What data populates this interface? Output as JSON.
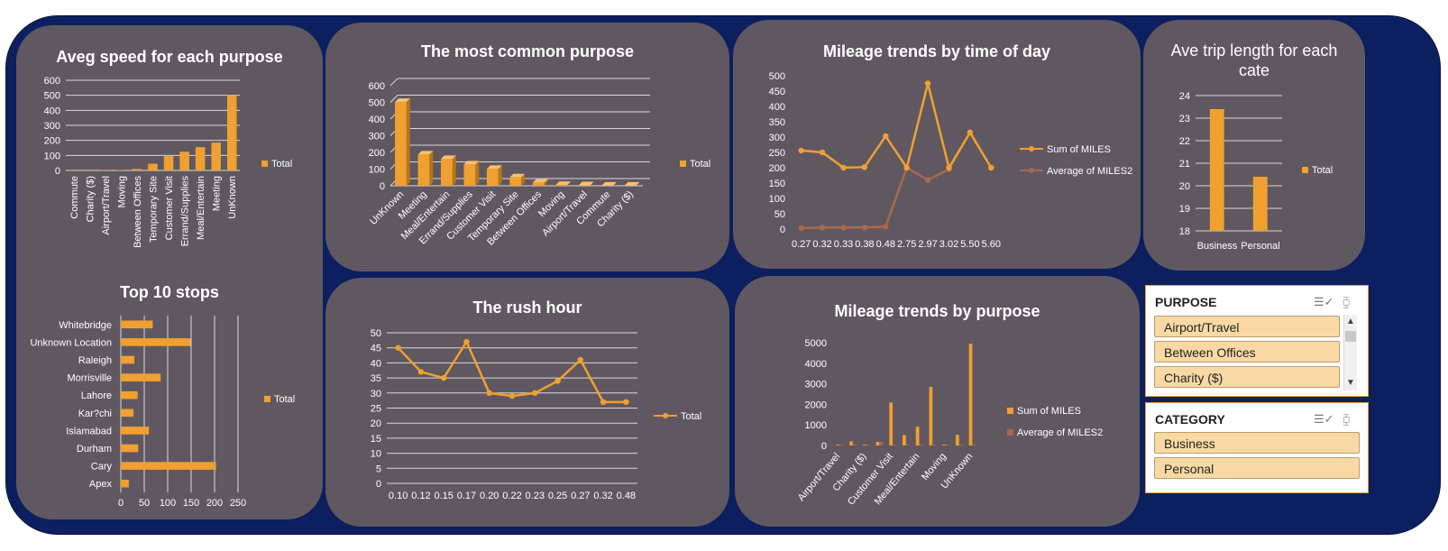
{
  "slicers": {
    "purpose": {
      "title": "PURPOSE",
      "items": [
        "Airport/Travel",
        "Between Offices",
        "Charity ($)"
      ],
      "multiselect_icon": "multiselect-icon",
      "clear_icon": "clear-filter-icon"
    },
    "category": {
      "title": "CATEGORY",
      "items": [
        "Business",
        "Personal"
      ],
      "multiselect_icon": "multiselect-icon",
      "clear_icon": "clear-filter-icon"
    }
  },
  "colors": {
    "background": "#0c1f5f",
    "panel": "#605860",
    "accent": "#f0a030",
    "series2": "#a8684c",
    "text": "#ffffff"
  },
  "chart_data": [
    {
      "id": "avg-speed",
      "type": "bar",
      "title": "Aveg speed for each purpose",
      "categories": [
        "Commute",
        "Charity ($)",
        "Airport/Travel",
        "Moving",
        "Between Offices",
        "Temporary Site",
        "Customer Visit",
        "Errand/Supplies",
        "Meal/Entertain",
        "Meeting",
        "UnKnown"
      ],
      "series": [
        {
          "name": "Total",
          "values": [
            1,
            1,
            2,
            3,
            10,
            45,
            95,
            125,
            155,
            185,
            500
          ]
        }
      ],
      "ylim": [
        0,
        600
      ],
      "yticks": [
        0,
        100,
        200,
        300,
        400,
        500,
        600
      ],
      "grid": true,
      "legend": "right"
    },
    {
      "id": "common-purpose",
      "type": "bar",
      "title": "The most common purpose",
      "categories": [
        "UnKnown",
        "Meeting",
        "Meal/Entertain",
        "Errand/Supplies",
        "Customer Visit",
        "Temporary Site",
        "Between Offices",
        "Moving",
        "Airport/Travel",
        "Commute",
        "Charity ($)"
      ],
      "series": [
        {
          "name": "Total",
          "values": [
            502,
            187,
            160,
            128,
            101,
            50,
            18,
            4,
            3,
            1,
            1
          ]
        }
      ],
      "ylim": [
        0,
        600
      ],
      "yticks": [
        0,
        100,
        200,
        300,
        400,
        500,
        600
      ],
      "grid": true,
      "legend": "right"
    },
    {
      "id": "mileage-time",
      "type": "line",
      "title": "Mileage trends by time of day",
      "categories": [
        "0.27",
        "0.32",
        "0.33",
        "0.38",
        "0.48",
        "2.75",
        "2.97",
        "3.02",
        "5.50",
        "5.60"
      ],
      "series": [
        {
          "name": "Sum of MILES",
          "values": [
            256,
            250,
            200,
            202,
            303,
            200,
            475,
            200,
            315,
            200
          ]
        },
        {
          "name": "Average of MILES2",
          "values": [
            3,
            5,
            5,
            5,
            8,
            200,
            160,
            195,
            315,
            200
          ]
        }
      ],
      "ylim": [
        0,
        500
      ],
      "yticks": [
        0,
        50,
        100,
        150,
        200,
        250,
        300,
        350,
        400,
        450,
        500
      ],
      "grid": true,
      "legend": "right"
    },
    {
      "id": "trip-length",
      "type": "bar",
      "title": "Ave trip length for each cate",
      "categories": [
        "Business",
        "Personal"
      ],
      "series": [
        {
          "name": "Total",
          "values": [
            23.4,
            20.4
          ]
        }
      ],
      "ylim": [
        18,
        24
      ],
      "yticks": [
        18,
        19,
        20,
        21,
        22,
        23,
        24
      ],
      "grid": true,
      "legend": "right"
    },
    {
      "id": "top-stops",
      "type": "bar",
      "orientation": "horizontal",
      "title": "Top 10 stops",
      "categories": [
        "Whitebridge",
        "Unknown Location",
        "Raleigh",
        "Morrisville",
        "Lahore",
        "Kar?chi",
        "Islamabad",
        "Durham",
        "Cary",
        "Apex"
      ],
      "series": [
        {
          "name": "Total",
          "values": [
            68,
            149,
            29,
            85,
            36,
            27,
            60,
            37,
            203,
            17
          ]
        }
      ],
      "xlim": [
        0,
        250
      ],
      "xticks": [
        0,
        50,
        100,
        150,
        200,
        250
      ],
      "grid": true,
      "legend": "right"
    },
    {
      "id": "rush-hour",
      "type": "line",
      "title": "The rush hour",
      "categories": [
        "0.10",
        "0.12",
        "0.15",
        "0.17",
        "0.20",
        "0.22",
        "0.23",
        "0.25",
        "0.27",
        "0.32",
        "0.48"
      ],
      "series": [
        {
          "name": "Total",
          "values": [
            45,
            37,
            35,
            47,
            30,
            29,
            30,
            34,
            41,
            27,
            27
          ]
        }
      ],
      "ylim": [
        0,
        50
      ],
      "yticks": [
        0,
        5,
        10,
        15,
        20,
        25,
        30,
        35,
        40,
        45,
        50
      ],
      "grid": true,
      "legend": "right"
    },
    {
      "id": "mileage-purpose",
      "type": "bar",
      "title": "Mileage trends by purpose",
      "categories": [
        "Airport/Travel",
        "Between Offices",
        "Charity ($)",
        "Commute",
        "Customer Visit",
        "Errand/Supplies",
        "Meal/Entertain",
        "Meeting",
        "Moving",
        "Temporary Site",
        "UnKnown"
      ],
      "tick_labels": [
        "Airport/Travel",
        "Charity ($)",
        "Customer Visit",
        "Meal/Entertain",
        "Moving",
        "UnKnown"
      ],
      "series": [
        {
          "name": "Sum of MILES",
          "values": [
            16,
            197,
            16,
            180,
            2090,
            508,
            911,
            2851,
            18,
            524,
            4950
          ]
        },
        {
          "name": "Average of MILES2",
          "values": [
            5,
            14,
            16,
            180,
            20,
            8,
            6,
            15,
            4,
            10,
            10
          ]
        }
      ],
      "ylim": [
        0,
        5000
      ],
      "yticks": [
        0,
        1000,
        2000,
        3000,
        4000,
        5000
      ],
      "grid": false,
      "legend": "right"
    }
  ]
}
